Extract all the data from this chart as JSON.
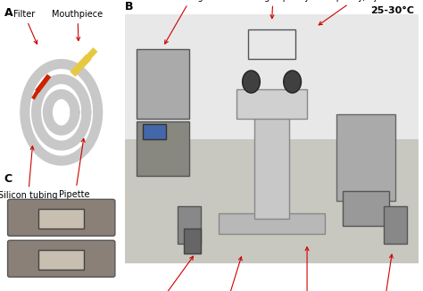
{
  "figsize": [
    4.74,
    3.26
  ],
  "dpi": 100,
  "bg_color": "#ffffff",
  "panel_A_label": "A",
  "panel_B_label": "B",
  "panel_C_label": "C",
  "temp_label": "25-30°C",
  "arrow_color": "#cc0000",
  "label_fontsize": 7,
  "panel_label_fontsize": 9,
  "temp_fontsize": 8
}
